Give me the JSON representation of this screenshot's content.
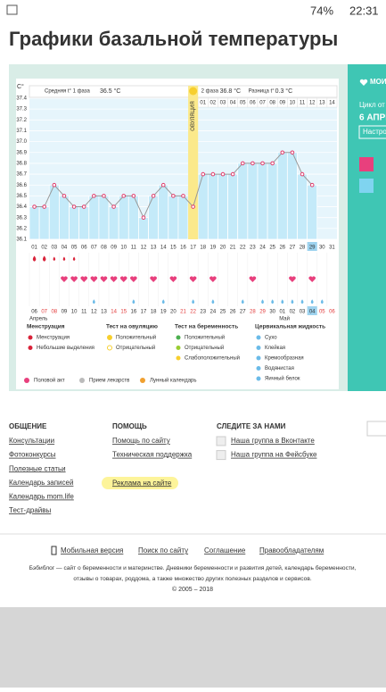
{
  "status_bar": {
    "battery": "74%",
    "time": "22:31"
  },
  "title": "Графики базальной температуры",
  "sidebar": {
    "my": "МОИ",
    "cycle": "Цикл от",
    "date": "6 АПРЕ",
    "settings": "Настро"
  },
  "chart_data": {
    "type": "line",
    "phase1": {
      "label": "Средняя t° 1 фаза",
      "value": "36.5 °С"
    },
    "phase2": {
      "label": "2 фаза",
      "value": "36.8 °С"
    },
    "difference": {
      "label": "Разница t°",
      "value": "0.3 °С"
    },
    "y_label": "C°",
    "ovulation": "ОВУЛЯЦИЯ",
    "categories": [
      "01",
      "02",
      "03",
      "04",
      "05",
      "06",
      "07",
      "08",
      "09",
      "10",
      "11",
      "12",
      "13",
      "14",
      "15",
      "16",
      "17",
      "18",
      "19",
      "20",
      "21",
      "22",
      "23",
      "24",
      "25",
      "26",
      "27",
      "28",
      "29",
      "30",
      "31"
    ],
    "values": [
      36.4,
      36.4,
      36.6,
      36.5,
      36.4,
      36.4,
      36.5,
      36.5,
      36.4,
      36.5,
      36.5,
      36.3,
      36.5,
      36.6,
      36.5,
      36.5,
      36.4,
      36.7,
      36.7,
      36.7,
      36.7,
      36.8,
      36.8,
      36.8,
      36.8,
      36.9,
      36.9,
      36.7,
      36.6,
      null,
      null
    ],
    "ylim": [
      36.1,
      37.4
    ],
    "yticks": [
      36.1,
      36.2,
      36.3,
      36.4,
      36.5,
      36.6,
      36.7,
      36.8,
      36.9,
      {
        "value": 37,
        "label": "37.0"
      },
      37.1,
      37.2,
      37.3,
      37.4
    ],
    "phase2_days": [
      "01",
      "02",
      "03",
      "04",
      "05",
      "06",
      "07",
      "08",
      "09",
      "10",
      "11",
      "12",
      "13",
      "14"
    ],
    "dates": [
      "06",
      "07",
      "08",
      "09",
      "10",
      "11",
      "12",
      "13",
      "14",
      "15",
      "16",
      "17",
      "18",
      "19",
      "20",
      "21",
      "22",
      "23",
      "24",
      "25",
      "26",
      "27",
      "28",
      "29",
      "30",
      "01",
      "02",
      "03",
      "04",
      "05",
      "06"
    ],
    "months": [
      "Апрель",
      "Май"
    ],
    "legend": {
      "menstruation": {
        "title": "Менструация",
        "items": [
          "Менструация",
          "Небольшие выделения"
        ]
      },
      "ovulation_test": {
        "title": "Тест на овуляцию",
        "items": [
          "Положительный",
          "Отрицательный"
        ]
      },
      "pregnancy_test": {
        "title": "Тест на беременность",
        "items": [
          "Положительный",
          "Отрицательный",
          "Слабоположительный"
        ]
      },
      "cervical": {
        "title": "Цервикальная жидкость",
        "items": [
          "Сухо",
          "Клейкая",
          "Кремообразная",
          "Водянистая",
          "Яичный белок"
        ]
      },
      "bottom": [
        "Половой акт",
        "Прием лекарств",
        "Лунный календарь"
      ]
    }
  },
  "footer": {
    "community": {
      "title": "ОБЩЕНИЕ",
      "links": [
        "Консультации",
        "Фотоконкурсы",
        "Полезные статьи",
        "Календарь записей",
        "Календарь mom.life",
        "Тест-драйвы"
      ]
    },
    "help": {
      "title": "ПОМОЩЬ",
      "links": [
        "Помощь по сайту",
        "Техническая поддержка",
        "Реклама на сайте"
      ]
    },
    "follow": {
      "title": "СЛЕДИТЕ ЗА НАМИ",
      "links": [
        "Наша группа в Вконтакте",
        "Наша группа на Фейсбуке"
      ]
    },
    "bottom_links": [
      "Мобильная версия",
      "Поиск по сайту",
      "Соглашение",
      "Правообладателям"
    ],
    "description": [
      "Бэбиблог — сайт о беременности и материнстве. Дневники беременности и развития детей, календарь беременности,",
      "отзывы о товарах, роддома, а также множество других полезных разделов и сервисов."
    ],
    "copyright": "© 2005 – 2018"
  }
}
